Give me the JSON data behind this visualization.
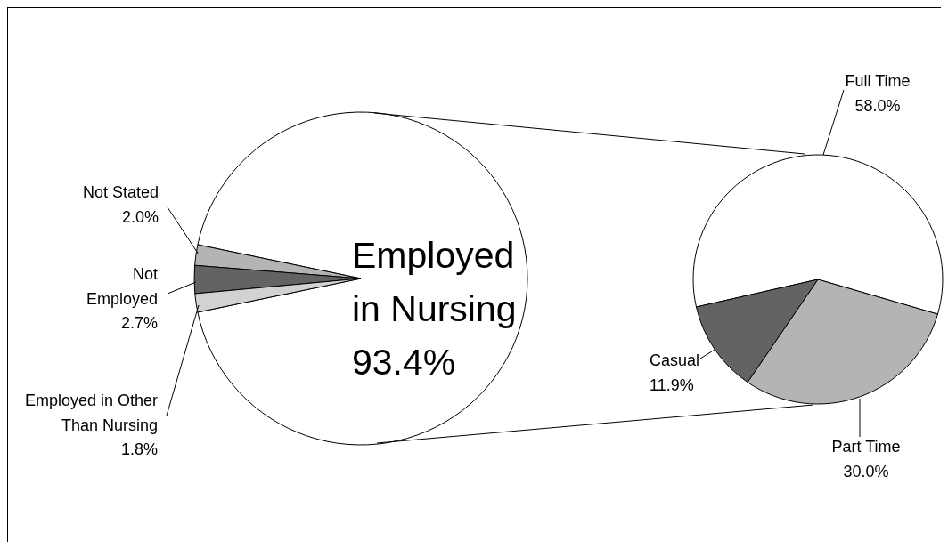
{
  "chart_data": [
    {
      "type": "pie",
      "categories": [
        "Employed in Nursing",
        "Not Stated",
        "Not Employed",
        "Employed in Other Than Nursing"
      ],
      "values": [
        93.4,
        2.0,
        2.7,
        1.8
      ],
      "colors": [
        "#ffffff",
        "#b4b4b4",
        "#636363",
        "#d2d2d2"
      ],
      "value_labels": [
        "93.4%",
        "2.0%",
        "2.7%",
        "1.8%"
      ]
    },
    {
      "type": "pie",
      "categories": [
        "Full Time",
        "Part Time",
        "Casual"
      ],
      "values": [
        58.0,
        30.0,
        11.9
      ],
      "colors": [
        "#ffffff",
        "#b4b4b4",
        "#636363"
      ],
      "value_labels": [
        "58.0%",
        "30.0%",
        "11.9%"
      ]
    }
  ]
}
